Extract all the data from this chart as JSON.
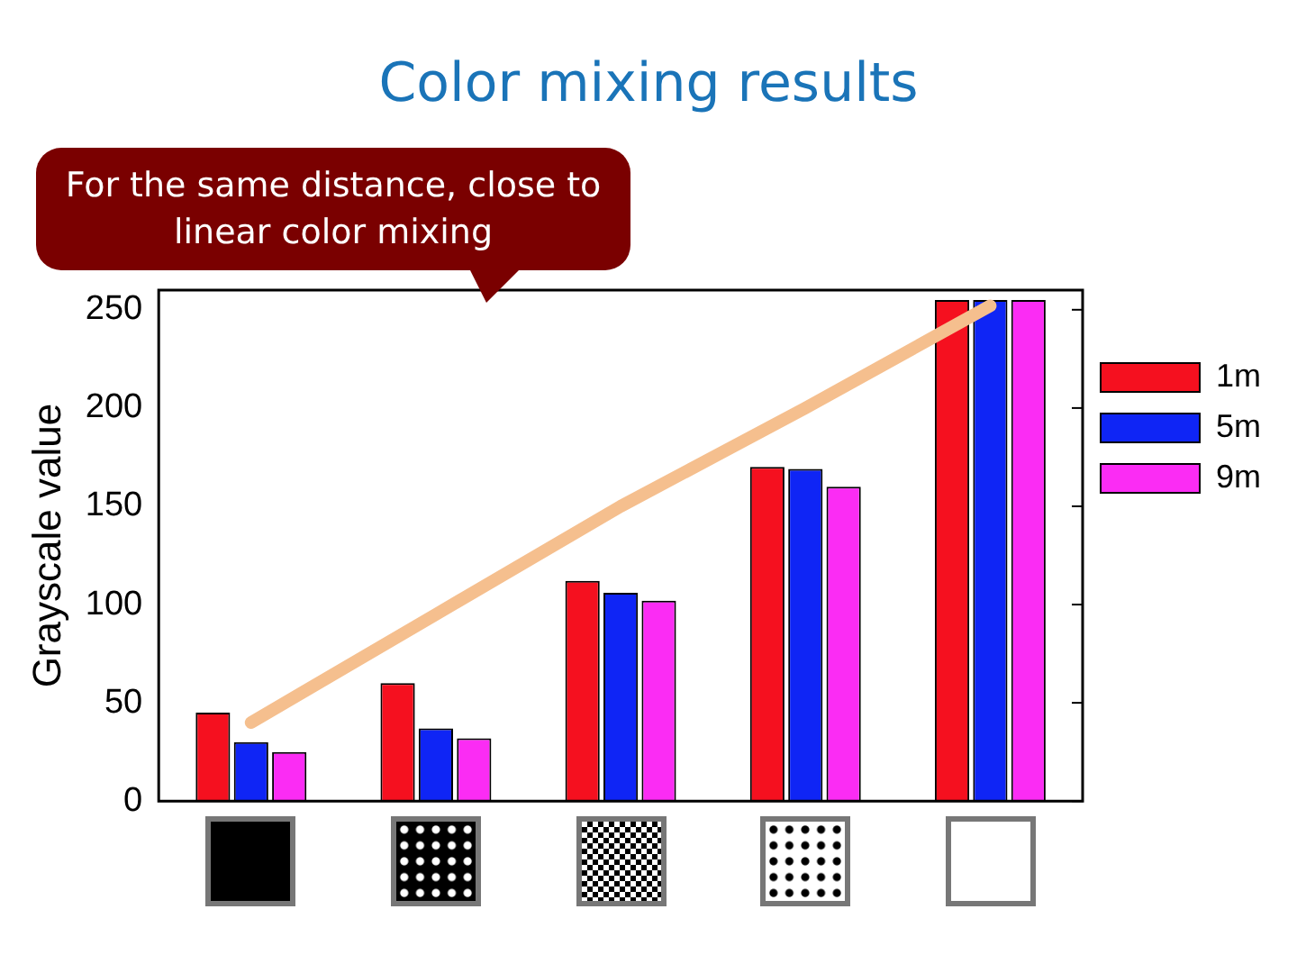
{
  "chart_data": {
    "type": "bar",
    "title": "Color mixing results",
    "ylabel": "Grayscale value",
    "categories": [
      null,
      null,
      null,
      null,
      null
    ],
    "series": [
      {
        "name": "1m",
        "color": "#f5101f",
        "values": [
          45,
          60,
          112,
          170,
          255
        ]
      },
      {
        "name": "5m",
        "color": "#0f25f5",
        "values": [
          30,
          37,
          106,
          169,
          255
        ]
      },
      {
        "name": "9m",
        "color": "#fb2cf4",
        "values": [
          25,
          32,
          102,
          160,
          255
        ]
      },
      {
        "type": "line",
        "color": "#f5bf8e",
        "values": [
          40,
          95,
          150,
          200,
          252
        ]
      }
    ],
    "ylim": [
      0,
      260
    ],
    "yticks": [
      0,
      50,
      100,
      150,
      200,
      250
    ],
    "grid": false,
    "legend": "right",
    "annotations": [
      "For the same distance, close to linear color mixing"
    ]
  }
}
